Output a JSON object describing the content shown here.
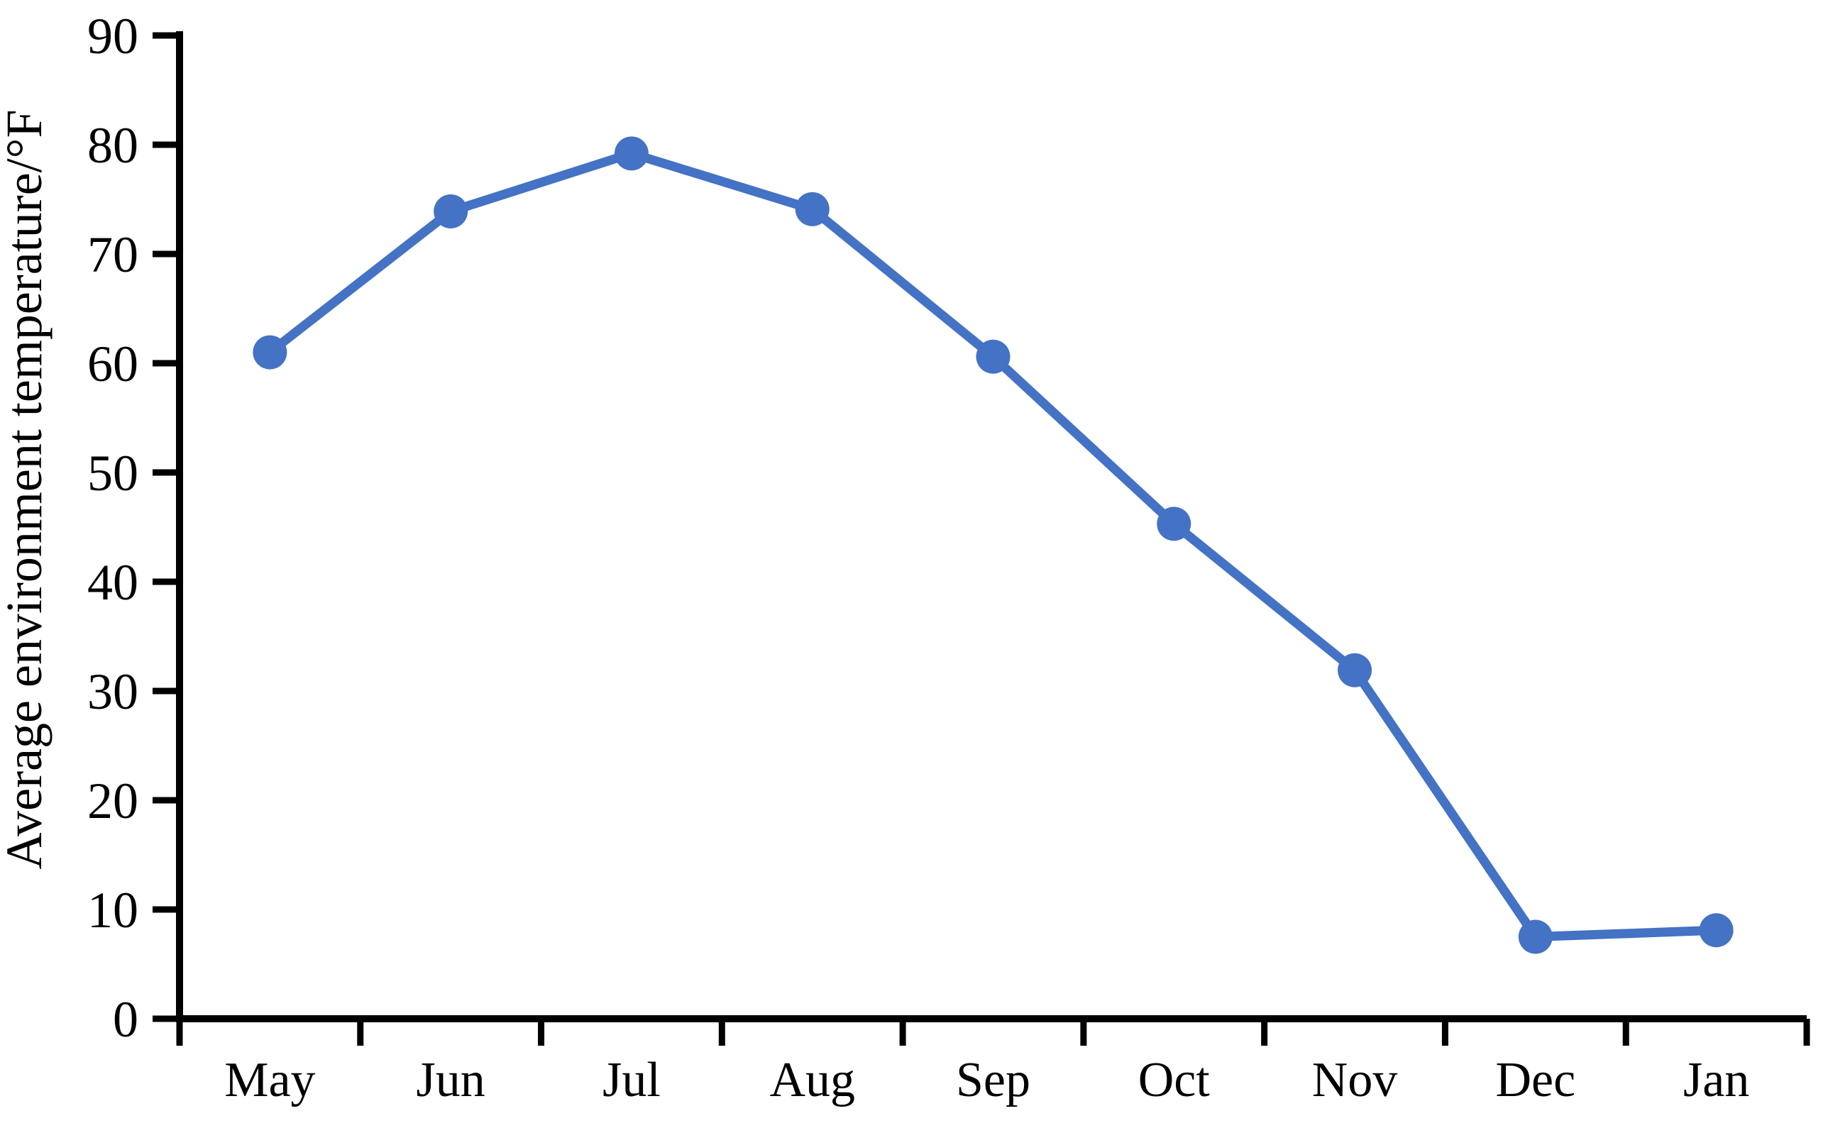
{
  "chart_data": {
    "type": "line",
    "title": "",
    "xlabel": "",
    "ylabel": "Average environment temperature/°F",
    "categories": [
      "May",
      "Jun",
      "Jul",
      "Aug",
      "Sep",
      "Oct",
      "Nov",
      "Dec",
      "Jan"
    ],
    "series": [
      {
        "name": "Average environment temperature",
        "values": [
          61.0,
          73.9,
          79.2,
          74.1,
          60.6,
          45.3,
          31.9,
          7.5,
          8.1
        ]
      }
    ],
    "ylim": [
      0,
      90
    ],
    "ytick_step": 10,
    "ytick_labels": [
      "0",
      "10",
      "20",
      "30",
      "40",
      "50",
      "60",
      "70",
      "80",
      "90"
    ],
    "grid": false,
    "legend_position": "none",
    "line_color": "#4472C4",
    "marker": "circle",
    "axis_color": "#000000"
  }
}
